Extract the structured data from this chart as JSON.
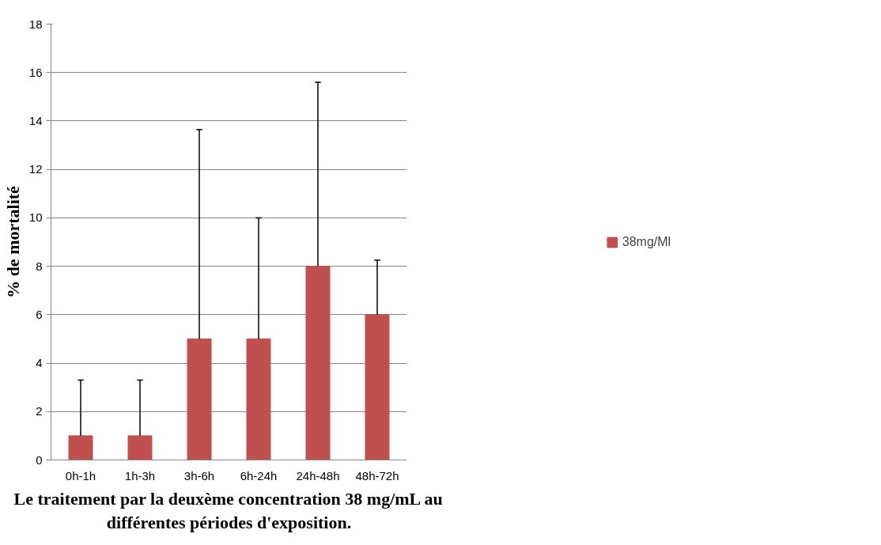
{
  "chart_data": {
    "type": "bar",
    "xlabel": "Le traitement par la deuxème concentration 38 mg/mL au\ndifférentes périodes d'exposition.",
    "ylabel": "% de mortalité",
    "categories": [
      "0h-1h",
      "1h-3h",
      "3h-6h",
      "6h-24h",
      "24h-48h",
      "48h-72h"
    ],
    "series": [
      {
        "name": "38mg/Ml",
        "color": "#c0504d",
        "values": [
          1,
          1,
          5,
          5,
          8,
          6
        ],
        "errors": [
          [
            1,
            3.3
          ],
          [
            1,
            3.3
          ],
          [
            5,
            13.65
          ],
          [
            5,
            10
          ],
          [
            8,
            15.6
          ],
          [
            6,
            8.25
          ]
        ]
      }
    ],
    "ylim": [
      0,
      18
    ],
    "yticks": [
      0,
      2,
      4,
      6,
      8,
      10,
      12,
      14,
      16,
      18
    ],
    "grid": "y",
    "legend": "right"
  }
}
